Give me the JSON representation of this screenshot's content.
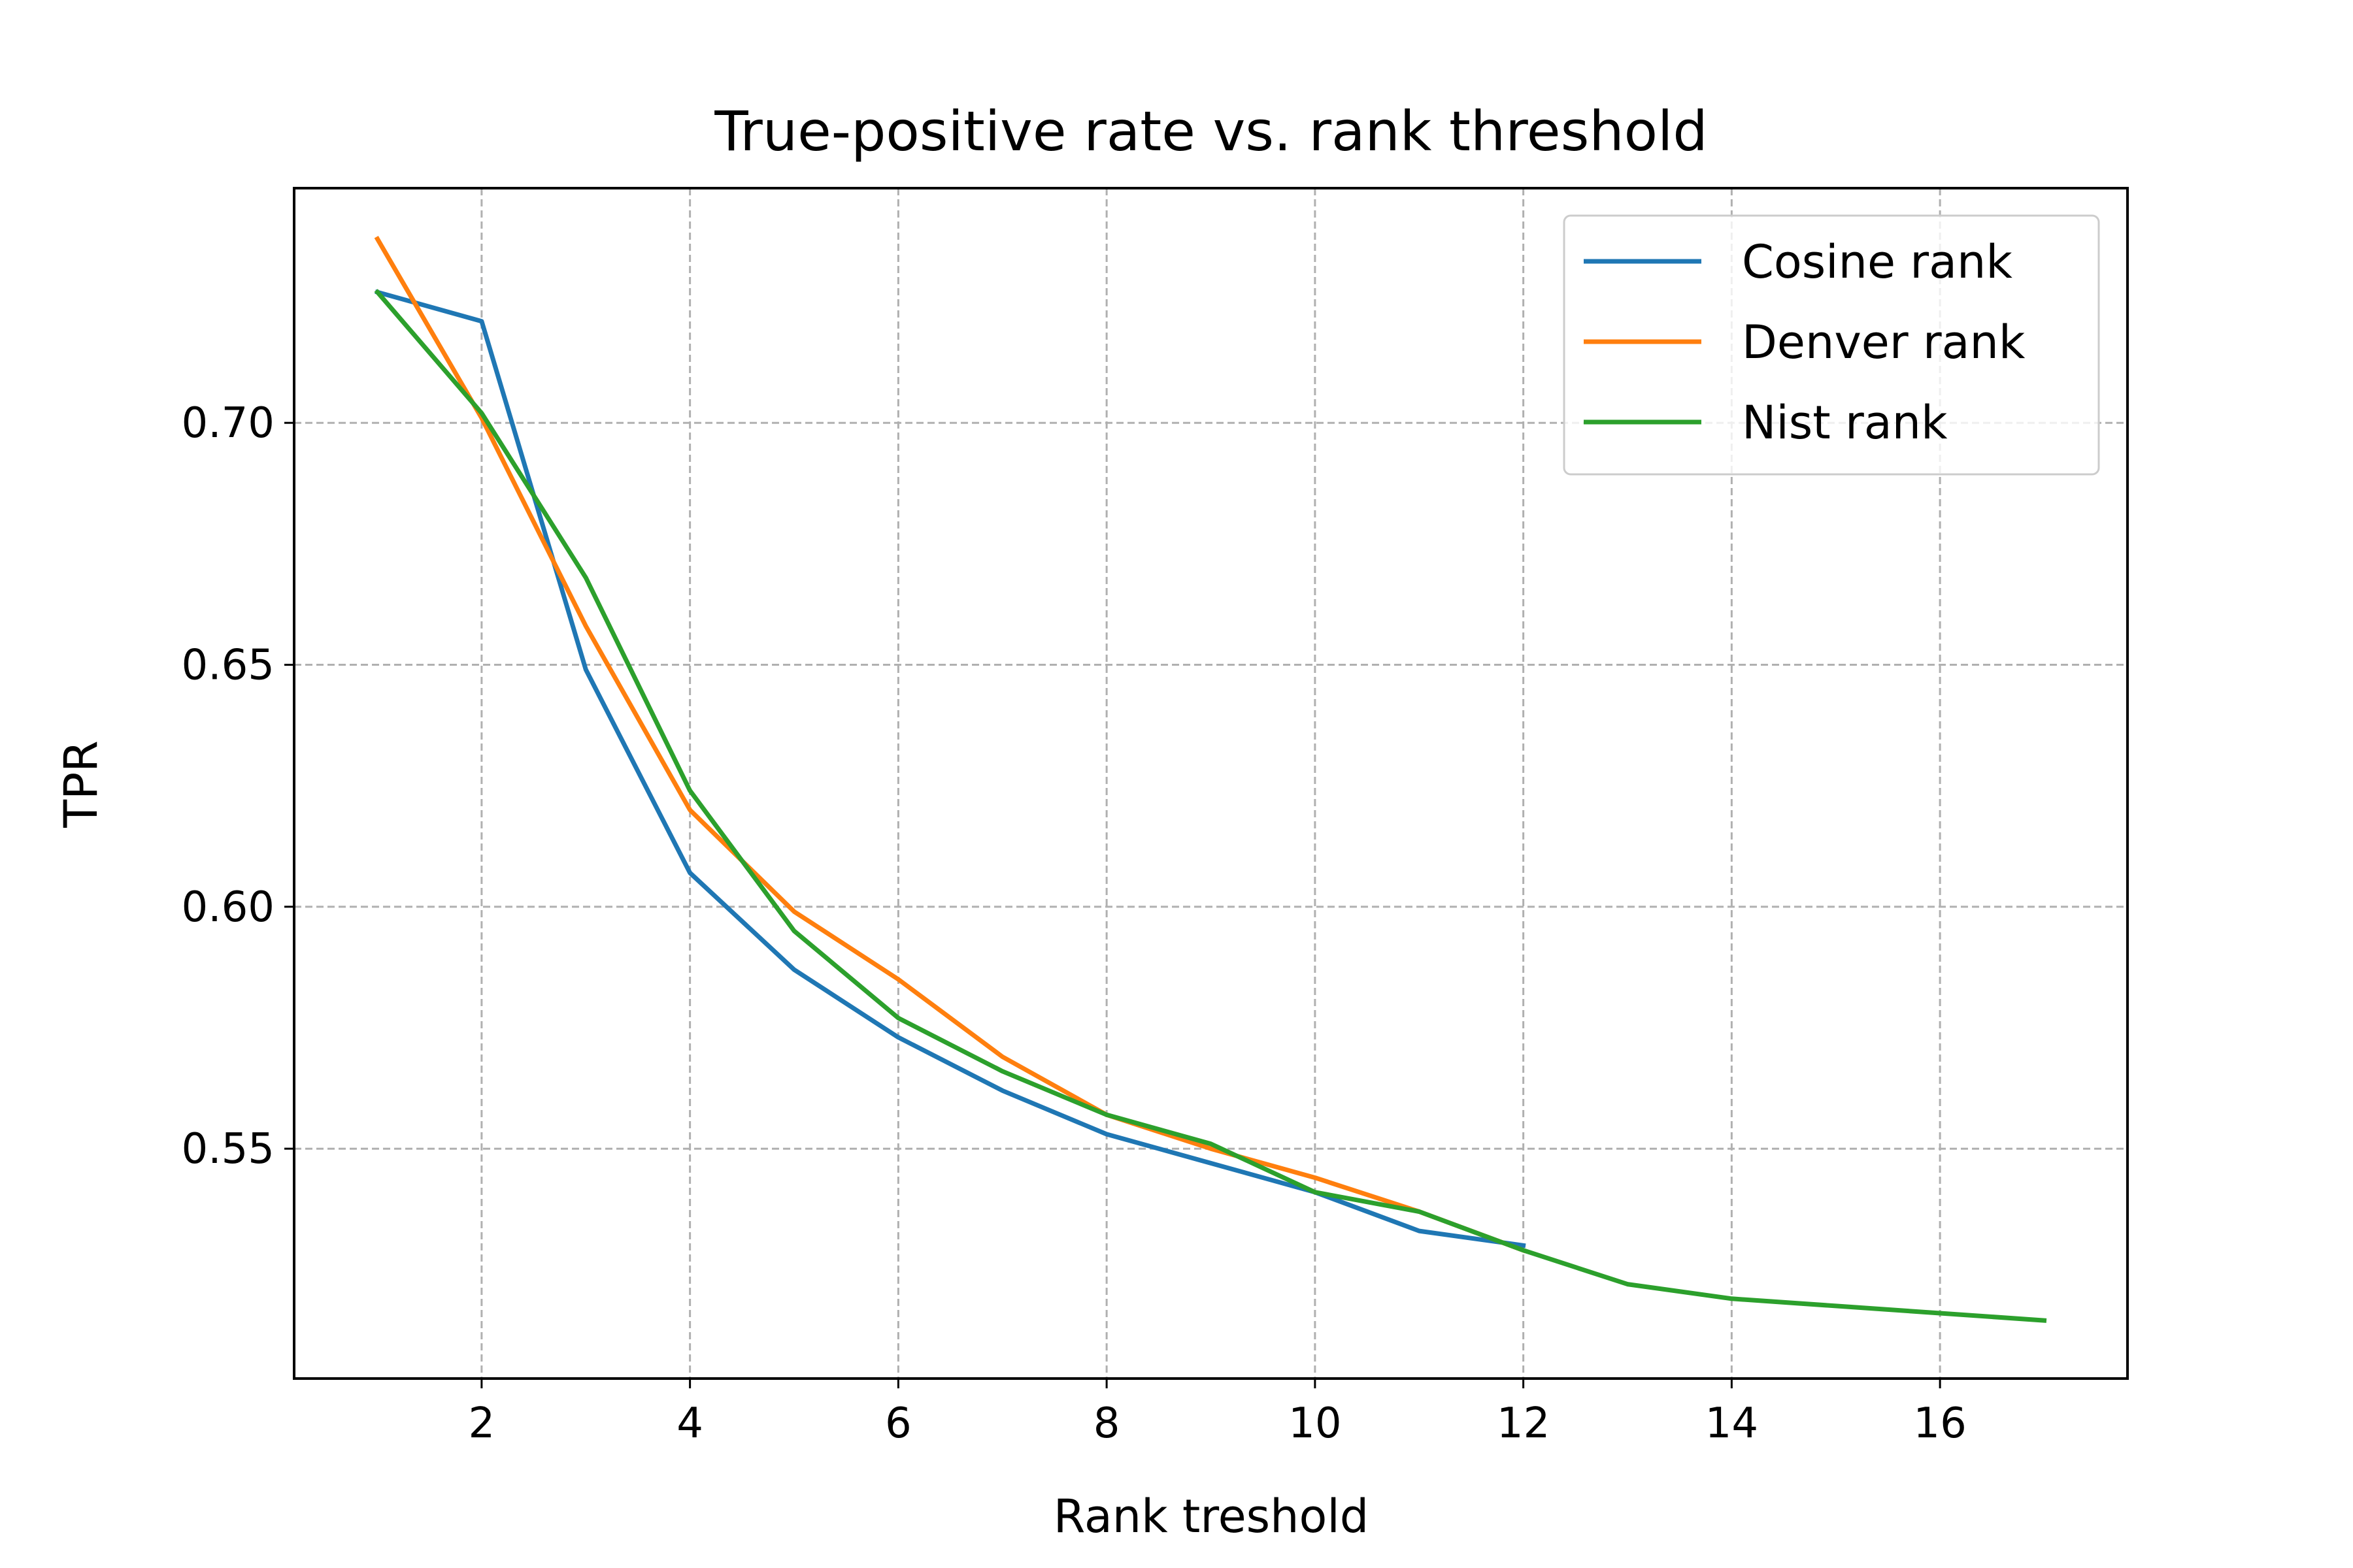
{
  "chart_data": {
    "type": "line",
    "title": "True-positive rate vs. rank threshold",
    "xlabel": "Rank treshold",
    "ylabel": "TPR",
    "xlim": [
      0.2,
      17.8
    ],
    "ylim": [
      0.5025,
      0.7485
    ],
    "xticks": [
      2,
      4,
      6,
      8,
      10,
      12,
      14,
      16
    ],
    "yticks": [
      0.55,
      0.6,
      0.65,
      0.7
    ],
    "ytick_labels": [
      "0.55",
      "0.60",
      "0.65",
      "0.70"
    ],
    "grid": true,
    "legend_position": "top-right",
    "series": [
      {
        "name": "Cosine rank",
        "color": "#1f77b4",
        "x": [
          1,
          2,
          3,
          4,
          5,
          6,
          7,
          8,
          9,
          10,
          11,
          12
        ],
        "y": [
          0.727,
          0.721,
          0.649,
          0.607,
          0.587,
          0.573,
          0.562,
          0.553,
          0.547,
          0.541,
          0.533,
          0.53
        ]
      },
      {
        "name": "Denver rank",
        "color": "#ff7f0e",
        "x": [
          1,
          2,
          3,
          4,
          5,
          6,
          7,
          8,
          9,
          10,
          11,
          12
        ],
        "y": [
          0.738,
          0.701,
          0.658,
          0.62,
          0.599,
          0.585,
          0.569,
          0.557,
          0.55,
          0.544,
          0.537,
          0.529
        ]
      },
      {
        "name": "Nist rank",
        "color": "#2ca02c",
        "x": [
          1,
          2,
          3,
          4,
          5,
          6,
          7,
          8,
          9,
          10,
          11,
          12,
          13,
          14,
          15,
          16,
          17
        ],
        "y": [
          0.727,
          0.702,
          0.668,
          0.624,
          0.595,
          0.577,
          0.566,
          0.557,
          0.551,
          0.541,
          0.537,
          0.529,
          0.522,
          0.519,
          0.5175,
          0.516,
          0.5145
        ]
      }
    ]
  }
}
